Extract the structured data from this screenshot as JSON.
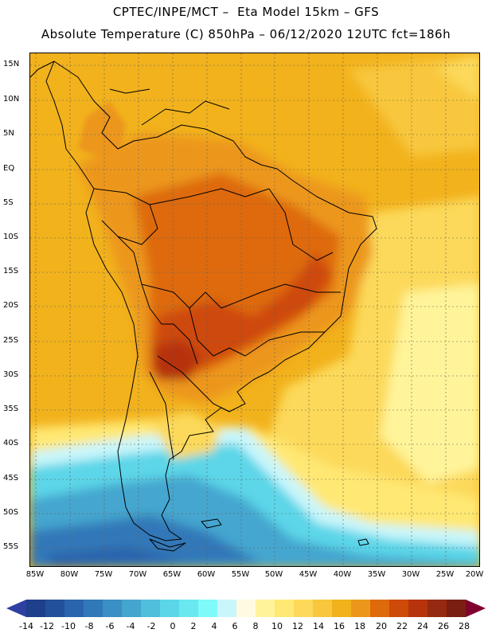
{
  "header": {
    "line1": "CPTEC/INPE/MCT –  Eta Model 15km – GFS",
    "line2": "Absolute Temperature (C) 850hPa – 06/12/2020 12UTC fct=186h"
  },
  "axes": {
    "lat_labels": [
      "15N",
      "10N",
      "5N",
      "EQ",
      "5S",
      "10S",
      "15S",
      "20S",
      "25S",
      "30S",
      "35S",
      "40S",
      "45S",
      "50S",
      "55S"
    ],
    "lon_labels": [
      "85W",
      "80W",
      "75W",
      "70W",
      "65W",
      "60W",
      "55W",
      "50W",
      "45W",
      "40W",
      "35W",
      "30W",
      "25W",
      "20W"
    ]
  },
  "colorbar": {
    "labels": [
      "-14",
      "-12",
      "-10",
      "-8",
      "-6",
      "-4",
      "-2",
      "0",
      "2",
      "4",
      "6",
      "8",
      "10",
      "12",
      "14",
      "16",
      "18",
      "20",
      "22",
      "24",
      "26",
      "28"
    ],
    "colors": [
      "#1e3f8c",
      "#23509a",
      "#2a64ac",
      "#3178b8",
      "#3a8fc4",
      "#44a6cf",
      "#4fbfdb",
      "#5bd6e8",
      "#6ae8f0",
      "#7efaf8",
      "#c9f6fb",
      "#fffbe0",
      "#fff49a",
      "#ffe873",
      "#fcd95a",
      "#f8c73e",
      "#f2b21c",
      "#ec971b",
      "#de6a0c",
      "#ce4a09",
      "#b6330b",
      "#962a10",
      "#7a1e12"
    ],
    "min_color": "#2f3fa2",
    "max_color": "#80002e"
  }
}
